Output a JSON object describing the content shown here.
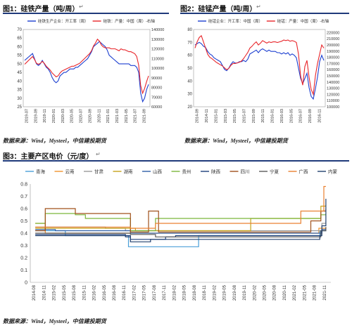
{
  "fig1": {
    "title": "图1：硅铁产量（吨/周）",
    "source": "数据来源：Wind，Mysteel，中信建投期货",
    "chart_data": {
      "type": "line",
      "x_labels": [
        "2019-07",
        "2019-09",
        "2019-11",
        "2020-01",
        "2020-03",
        "2020-05",
        "2020-07",
        "2020-09",
        "2020-11",
        "2021-01",
        "2021-03",
        "2021-05",
        "2021-07",
        "2021-09"
      ],
      "series": [
        {
          "name": "硅铁生产企业：开工率（周）",
          "axis": "left",
          "color": "#1c3fd0",
          "values": [
            52,
            53,
            54,
            55,
            56,
            53,
            50,
            49,
            50,
            52,
            50,
            48,
            47,
            45,
            42,
            40,
            39,
            40,
            43,
            44,
            45,
            45,
            46,
            47,
            47,
            47,
            48,
            48,
            49,
            50,
            51,
            52,
            53,
            55,
            57,
            60,
            61,
            62,
            63,
            62,
            61,
            60,
            58,
            55,
            54,
            53,
            52,
            51,
            50,
            50,
            50,
            50,
            50,
            50,
            49,
            49,
            49,
            48,
            45,
            33,
            28,
            30,
            35,
            38
          ]
        },
        {
          "name": "硅铁：产量：中国（周）-右轴",
          "axis": "right",
          "color": "#e8262b",
          "values": [
            104000,
            106000,
            108000,
            110000,
            112000,
            109000,
            105000,
            104000,
            105000,
            107000,
            105000,
            102000,
            100000,
            98000,
            95000,
            93000,
            91000,
            92000,
            95000,
            97000,
            98000,
            99000,
            100000,
            101000,
            102000,
            102000,
            103000,
            104000,
            105000,
            107000,
            109000,
            111000,
            113000,
            115000,
            118000,
            123000,
            126000,
            130000,
            128000,
            124000,
            122000,
            121000,
            121000,
            121000,
            120000,
            120000,
            120000,
            119000,
            118000,
            120000,
            119000,
            119000,
            118000,
            117000,
            117000,
            116000,
            115000,
            112000,
            103000,
            82000,
            74000,
            79000,
            86000,
            92000
          ]
        }
      ],
      "ylim_left": [
        25,
        70
      ],
      "yticks_left": [
        25,
        30,
        35,
        40,
        45,
        50,
        55,
        60,
        65,
        70
      ],
      "ylim_right": [
        60000,
        140000
      ],
      "yticks_right": [
        60000,
        70000,
        80000,
        90000,
        100000,
        110000,
        120000,
        130000,
        140000
      ]
    }
  },
  "fig2": {
    "title": "图2：硅锰产量（吨/周）",
    "source": "数据来源：Wind，Mysteel，中信建投期货",
    "chart_data": {
      "type": "line",
      "x_labels": [
        "2014-09",
        "2014-11",
        "2015-01",
        "2015-03",
        "2015-05",
        "2015-07",
        "2015-09",
        "2015-11",
        "2016-01",
        "2016-03",
        "2016-05",
        "2016-07",
        "2016-09",
        "2016-11"
      ],
      "series": [
        {
          "name": "硅锰企业：开工率：中国（周）",
          "axis": "left",
          "color": "#1c3fd0",
          "values": [
            68,
            69,
            70,
            69,
            67,
            66,
            63,
            61,
            60,
            58,
            57,
            56,
            55,
            52,
            49,
            48,
            50,
            53,
            55,
            54,
            54,
            55,
            55,
            56,
            55,
            57,
            61,
            62,
            63,
            64,
            62,
            64,
            65,
            64,
            63,
            64,
            63,
            63,
            63,
            62,
            62,
            61,
            62,
            61,
            62,
            60,
            61,
            60,
            58,
            50,
            42,
            38,
            42,
            46,
            35,
            28,
            26,
            34,
            43,
            55,
            60,
            56
          ]
        },
        {
          "name": "硅锰：产量：中国（周）-右轴",
          "axis": "right",
          "color": "#e8262b",
          "values": [
            195000,
            205000,
            212000,
            215000,
            205000,
            195000,
            185000,
            180000,
            178000,
            175000,
            172000,
            170000,
            168000,
            166000,
            163000,
            160000,
            162000,
            167000,
            170000,
            170000,
            171000,
            172000,
            174000,
            178000,
            183000,
            188000,
            195000,
            198000,
            202000,
            205000,
            200000,
            203000,
            207000,
            205000,
            203000,
            205000,
            204000,
            205000,
            205000,
            204000,
            205000,
            206000,
            208000,
            207000,
            208000,
            206000,
            207000,
            206000,
            204000,
            185000,
            150000,
            135000,
            165000,
            175000,
            148000,
            128000,
            120000,
            150000,
            170000,
            185000,
            200000,
            195000
          ]
        }
      ],
      "ylim_left": [
        20,
        80
      ],
      "yticks_left": [
        20,
        30,
        40,
        50,
        60,
        70,
        80
      ],
      "ylim_right": [
        100000,
        225000
      ],
      "yticks_right": [
        100000,
        110000,
        120000,
        130000,
        140000,
        150000,
        160000,
        170000,
        180000,
        190000,
        200000,
        210000,
        220000
      ]
    }
  },
  "fig3": {
    "title": "图3：主要产区电价（元/度）",
    "source": "数据来源：Wind，Mysteel，中信建投期货",
    "chart_data": {
      "type": "line",
      "x_labels": [
        "2014-08",
        "2014-11",
        "2015-02",
        "2015-05",
        "2015-08",
        "2015-11",
        "2016-02",
        "2016-05",
        "2016-08",
        "2016-11",
        "2017-02",
        "2017-05",
        "2017-08",
        "2017-11",
        "2018-02",
        "2018-05",
        "2018-08",
        "2018-11",
        "2019-02",
        "2019-05",
        "2019-08",
        "2019-11",
        "2020-02",
        "2020-05",
        "2020-08",
        "2020-11",
        "2021-02",
        "2021-05",
        "2021-08",
        "2021-11"
      ],
      "ylim": [
        0,
        0.8
      ],
      "yticks": [
        0,
        0.1,
        0.2,
        0.3,
        0.4,
        0.5,
        0.6,
        0.7,
        0.8
      ],
      "series": [
        {
          "name": "青海",
          "color": "#4a9fd8",
          "steps": [
            [
              0,
              0.42
            ],
            [
              3,
              0.38
            ],
            [
              9,
              0.38
            ],
            [
              9.3,
              0.29
            ],
            [
              16,
              0.29
            ],
            [
              16.3,
              0.38
            ],
            [
              28.2,
              0.38
            ],
            [
              28.4,
              0.42
            ],
            [
              29,
              0.43
            ]
          ]
        },
        {
          "name": "云南",
          "color": "#f0922c",
          "steps": [
            [
              0,
              0.48
            ],
            [
              1,
              0.4
            ],
            [
              6,
              0.4
            ],
            [
              7,
              0.4
            ],
            [
              9.5,
              0.4
            ],
            [
              12,
              0.4
            ],
            [
              28,
              0.4
            ],
            [
              28.3,
              0.44
            ],
            [
              29,
              0.45
            ]
          ]
        },
        {
          "name": "甘肃",
          "color": "#9a9a9a",
          "steps": [
            [
              0,
              0.45
            ],
            [
              7,
              0.44
            ],
            [
              9,
              0.42
            ],
            [
              28.3,
              0.42
            ],
            [
              28.6,
              0.48
            ],
            [
              29,
              0.5
            ]
          ]
        },
        {
          "name": "湖南",
          "color": "#c6a21a",
          "steps": [
            [
              0,
              0.44
            ],
            [
              1.5,
              0.44
            ],
            [
              3,
              0.44
            ],
            [
              5,
              0.44
            ],
            [
              9.5,
              0.44
            ],
            [
              10,
              0.42
            ],
            [
              21,
              0.42
            ],
            [
              21.5,
              0.52
            ],
            [
              28.3,
              0.52
            ],
            [
              28.5,
              0.62
            ],
            [
              29,
              0.63
            ]
          ]
        },
        {
          "name": "山西",
          "color": "#2f5fa8",
          "steps": [
            [
              0,
              0.43
            ],
            [
              2,
              0.42
            ],
            [
              8,
              0.42
            ],
            [
              9.5,
              0.4
            ],
            [
              28.3,
              0.4
            ],
            [
              28.6,
              0.43
            ],
            [
              29,
              0.44
            ]
          ]
        },
        {
          "name": "贵州",
          "color": "#7bb63a",
          "steps": [
            [
              0,
              0.48
            ],
            [
              1,
              0.56
            ],
            [
              4,
              0.55
            ],
            [
              5,
              0.52
            ],
            [
              9.5,
              0.42
            ],
            [
              11,
              0.42
            ],
            [
              12,
              0.52
            ],
            [
              28.2,
              0.52
            ],
            [
              28.5,
              0.55
            ],
            [
              29,
              0.56
            ]
          ]
        },
        {
          "name": "陕西",
          "color": "#1b3d7a",
          "steps": [
            [
              0,
              0.39
            ],
            [
              1,
              0.39
            ],
            [
              9,
              0.38
            ],
            [
              9.5,
              0.35
            ],
            [
              12.5,
              0.35
            ],
            [
              13,
              0.37
            ],
            [
              14,
              0.38
            ],
            [
              28.2,
              0.38
            ],
            [
              28.5,
              0.42
            ],
            [
              29,
              0.44
            ]
          ]
        },
        {
          "name": "四川",
          "color": "#a0501a",
          "steps": [
            [
              0,
              0.42
            ],
            [
              1,
              0.6
            ],
            [
              3,
              0.6
            ],
            [
              4,
              0.56
            ],
            [
              9.5,
              0.41
            ],
            [
              11,
              0.41
            ],
            [
              11.3,
              0.58
            ],
            [
              12,
              0.58
            ],
            [
              12.3,
              0.41
            ],
            [
              27,
              0.41
            ],
            [
              27.5,
              0.5
            ],
            [
              28.5,
              0.58
            ],
            [
              29,
              0.6
            ]
          ]
        },
        {
          "name": "宁夏",
          "color": "#5a5a5a",
          "steps": [
            [
              0,
              0.4
            ],
            [
              9.5,
              0.39
            ],
            [
              12,
              0.37
            ],
            [
              28.2,
              0.37
            ],
            [
              28.5,
              0.42
            ],
            [
              29,
              0.45
            ]
          ]
        },
        {
          "name": "广西",
          "color": "#e98030",
          "steps": [
            [
              0,
              0.45
            ],
            [
              1,
              0.45
            ],
            [
              9.5,
              0.44
            ],
            [
              12,
              0.48
            ],
            [
              26,
              0.48
            ],
            [
              26.5,
              0.58
            ],
            [
              28.6,
              0.58
            ],
            [
              28.8,
              0.78
            ],
            [
              29,
              0.78
            ]
          ]
        },
        {
          "name": "内蒙",
          "color": "#22406e",
          "steps": [
            [
              0,
              0.38
            ],
            [
              9,
              0.37
            ],
            [
              9.5,
              0.33
            ],
            [
              11,
              0.33
            ],
            [
              11.5,
              0.35
            ],
            [
              28.2,
              0.35
            ],
            [
              28.4,
              0.38
            ],
            [
              28.6,
              0.46
            ],
            [
              29,
              0.68
            ]
          ]
        }
      ]
    }
  }
}
